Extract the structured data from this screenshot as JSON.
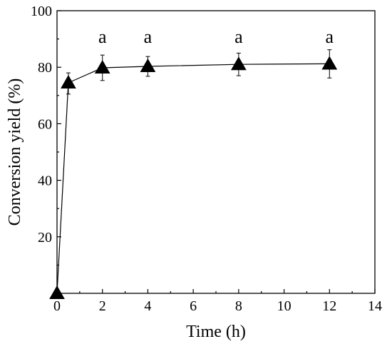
{
  "chart_data": {
    "type": "line",
    "xlabel": "Time (h)",
    "ylabel": "Conversion yield (%)",
    "xlim": [
      0,
      14
    ],
    "ylim": [
      0,
      100
    ],
    "xticks": [
      "0",
      "2",
      "4",
      "6",
      "8",
      "10",
      "12",
      "14"
    ],
    "yticks": [
      "20",
      "40",
      "60",
      "80",
      "100"
    ],
    "grid": false,
    "marker": "filled-triangle",
    "color": "#000000",
    "series": [
      {
        "x": [
          0,
          0.5,
          2,
          4,
          8,
          12
        ],
        "y": [
          0,
          74.5,
          79.8,
          80.3,
          81.0,
          81.2
        ],
        "err_plus": [
          0,
          3.5,
          4.5,
          3.5,
          4.0,
          5.0
        ],
        "err_minus": [
          0,
          4.0,
          4.5,
          3.5,
          4.0,
          5.0
        ]
      }
    ],
    "annotations": [
      {
        "x": 2,
        "text": "a"
      },
      {
        "x": 4,
        "text": "a"
      },
      {
        "x": 8,
        "text": "a"
      },
      {
        "x": 12,
        "text": "a"
      }
    ]
  }
}
